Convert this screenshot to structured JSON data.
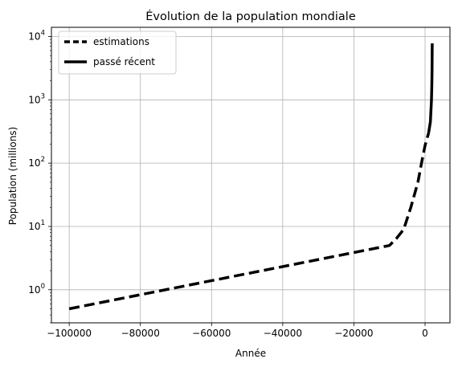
{
  "chart_data": {
    "type": "line",
    "title": "Évolution de la population mondiale",
    "xlabel": "Année",
    "ylabel": "Population (millions)",
    "xlim": [
      -105000,
      7000
    ],
    "ylim": [
      0.3,
      14000
    ],
    "yscale": "log",
    "grid": true,
    "legend_position": "top-left",
    "xticks": [
      -100000,
      -80000,
      -60000,
      -40000,
      -20000,
      0
    ],
    "xtick_labels": [
      "−100000",
      "−80000",
      "−60000",
      "−40000",
      "−20000",
      "0"
    ],
    "yticks": [
      1,
      10,
      100,
      1000,
      10000
    ],
    "ytick_labels": [
      {
        "base": "10",
        "exp": "0"
      },
      {
        "base": "10",
        "exp": "1"
      },
      {
        "base": "10",
        "exp": "2"
      },
      {
        "base": "10",
        "exp": "3"
      },
      {
        "base": "10",
        "exp": "4"
      }
    ],
    "series": [
      {
        "name": "estimations",
        "style": "dashed",
        "color": "#000000",
        "x": [
          -100000,
          -10000,
          -8000,
          -6000,
          -4000,
          -2000,
          -1000,
          0,
          1000
        ],
        "y": [
          0.5,
          5,
          6.5,
          9,
          20,
          50,
          100,
          190,
          300
        ]
      },
      {
        "name": "passé récent",
        "style": "solid",
        "color": "#000000",
        "x": [
          1000,
          1500,
          1800,
          1900,
          1950,
          2000,
          2020
        ],
        "y": [
          300,
          450,
          980,
          1650,
          2500,
          6100,
          7800
        ]
      }
    ]
  }
}
